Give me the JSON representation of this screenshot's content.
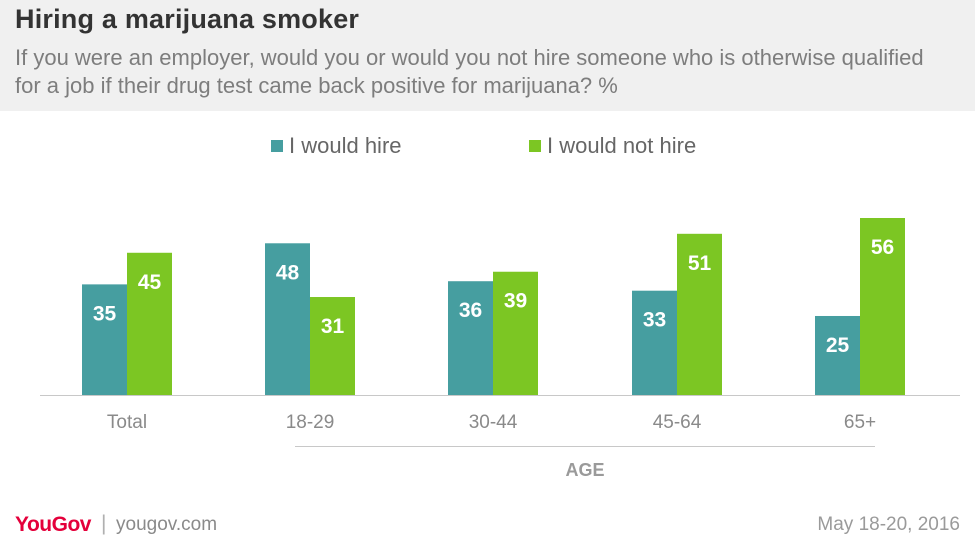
{
  "header": {
    "title": "Hiring a marijuana smoker",
    "subtitle": "If you were an employer, would you or would you not hire someone who is otherwise qualified for a job if their drug test came back positive for marijuana? %"
  },
  "chart_data": {
    "type": "bar",
    "title": "Hiring a marijuana smoker",
    "categories": [
      "Total",
      "18-29",
      "30-44",
      "45-64",
      "65+"
    ],
    "group_label": "AGE",
    "series": [
      {
        "name": "I would hire",
        "color": "#469ea0",
        "values": [
          35,
          48,
          36,
          33,
          25
        ]
      },
      {
        "name": "I would not hire",
        "color": "#7cc623",
        "values": [
          45,
          31,
          39,
          51,
          56
        ]
      }
    ],
    "ylim": [
      0,
      56
    ],
    "legend_position": "top",
    "grid": false
  },
  "footer": {
    "brand": "YouGov",
    "separator": "|",
    "site": "yougov.com",
    "date": "May 18-20, 2016"
  }
}
